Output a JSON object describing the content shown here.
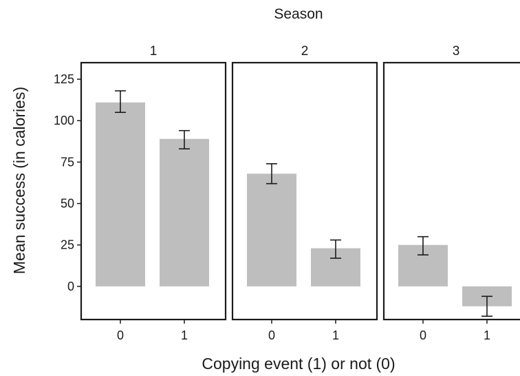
{
  "chart_data": {
    "type": "bar",
    "facet_title": "Season",
    "xlabel": "Copying event (1) or not (0)",
    "ylabel": "Mean success (in calories)",
    "ylim": [
      -20,
      135
    ],
    "yticks": [
      0,
      25,
      50,
      75,
      100,
      125
    ],
    "categories": [
      "0",
      "1"
    ],
    "bar_color": "#bebebe",
    "facets": [
      {
        "label": "1",
        "values": [
          111,
          89
        ],
        "error_low": [
          105,
          83
        ],
        "error_high": [
          118,
          94
        ]
      },
      {
        "label": "2",
        "values": [
          68,
          23
        ],
        "error_low": [
          62,
          17
        ],
        "error_high": [
          74,
          28
        ]
      },
      {
        "label": "3",
        "values": [
          25,
          -12
        ],
        "error_low": [
          19,
          -18
        ],
        "error_high": [
          30,
          -6
        ]
      }
    ]
  }
}
